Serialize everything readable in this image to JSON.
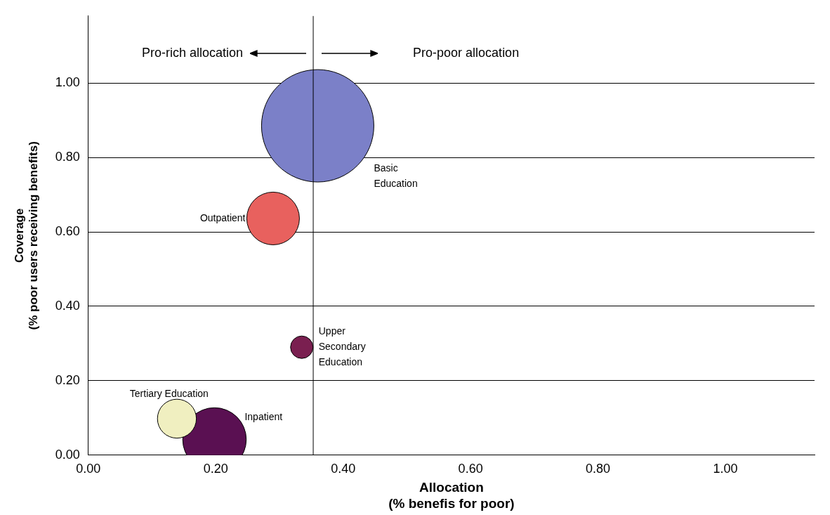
{
  "chart_data": {
    "type": "bubble",
    "xlabel": "Allocation\n(% benefis for poor)",
    "ylabel": "Coverage\n(% poor users receiving benefits)",
    "series": [
      {
        "name": "Basic Education",
        "color": "#7b80c8",
        "x": [
          0.36
        ],
        "values": [
          0.885
        ],
        "sizes": [
          1
        ]
      },
      {
        "name": "Outpatient",
        "color": "#e8615e",
        "x": [
          0.29
        ],
        "values": [
          0.636
        ],
        "sizes": [
          0.22
        ]
      },
      {
        "name": "Upper Secondary Education",
        "color": "#7a1f50",
        "x": [
          0.335
        ],
        "values": [
          0.29
        ],
        "sizes": [
          0.04
        ]
      },
      {
        "name": "Tertiary Education",
        "color": "#f0efc0",
        "x": [
          0.139
        ],
        "values": [
          0.098
        ],
        "sizes": [
          0.12
        ]
      },
      {
        "name": "Inpatient",
        "color": "#5a1052",
        "x": [
          0.198
        ],
        "values": [
          0.042
        ],
        "sizes": [
          0.32
        ]
      }
    ],
    "xlim": [
      0,
      1.14
    ],
    "ylim": [
      0,
      1.18
    ],
    "xticks": [
      {
        "value": 0,
        "label": "0.00"
      },
      {
        "value": 0.2,
        "label": "0.20"
      },
      {
        "value": 0.4,
        "label": "0.40"
      },
      {
        "value": 0.6,
        "label": "0.60"
      },
      {
        "value": 0.8,
        "label": "0.80"
      },
      {
        "value": 1,
        "label": "1.00"
      }
    ],
    "yticks": [
      {
        "value": 0,
        "label": "0.00"
      },
      {
        "value": 0.2,
        "label": "0.20"
      },
      {
        "value": 0.4,
        "label": "0.40"
      },
      {
        "value": 0.6,
        "label": "0.60"
      },
      {
        "value": 0.8,
        "label": "0.80"
      },
      {
        "value": 1,
        "label": "1.00"
      }
    ],
    "ref_lines": [
      {
        "axis": "x",
        "value": 0.353,
        "color": "#000000"
      }
    ],
    "annotations": [
      "Pro-rich allocation",
      "Pro-poor allocation"
    ],
    "grid": "y",
    "legend": false
  }
}
